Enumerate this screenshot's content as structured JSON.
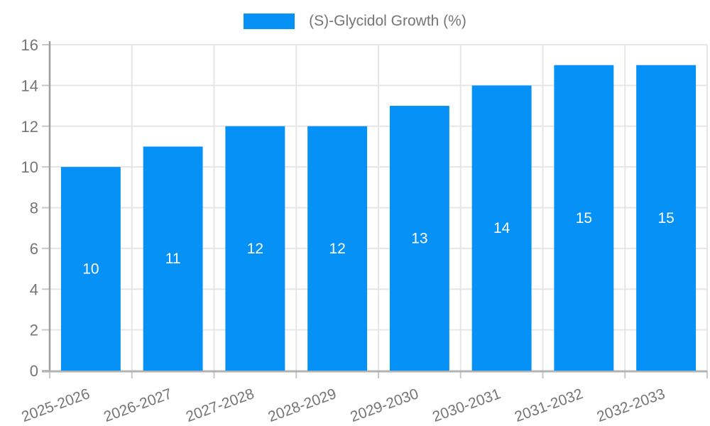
{
  "legend": {
    "label": "(S)-Glycidol Growth (%)"
  },
  "colors": {
    "bar": "#0591f5",
    "grid": "#e6e6e6",
    "axis_y": "#9e9e9e",
    "axis_x": "#b3b3b3",
    "tick_mark": "#c9c9c9",
    "tick_text": "#757575",
    "data_label": "#ffffff"
  },
  "chart_data": {
    "type": "bar",
    "title": "",
    "series_name": "(S)-Glycidol Growth (%)",
    "categories": [
      "2025-2026",
      "2026-2027",
      "2027-2028",
      "2028-2029",
      "2029-2030",
      "2030-2031",
      "2031-2032",
      "2032-2033"
    ],
    "values": [
      10,
      11,
      12,
      12,
      13,
      14,
      15,
      15
    ],
    "data_labels": [
      10,
      11,
      12,
      12,
      13,
      14,
      15,
      15
    ],
    "xlabel": "",
    "ylabel": "",
    "ylim": [
      0,
      16
    ],
    "yticks": [
      0,
      2,
      4,
      6,
      8,
      10,
      12,
      14,
      16
    ],
    "grid": true,
    "legend_position": "top",
    "x_label_rotation": -20,
    "data_label_position": "inside-center"
  }
}
